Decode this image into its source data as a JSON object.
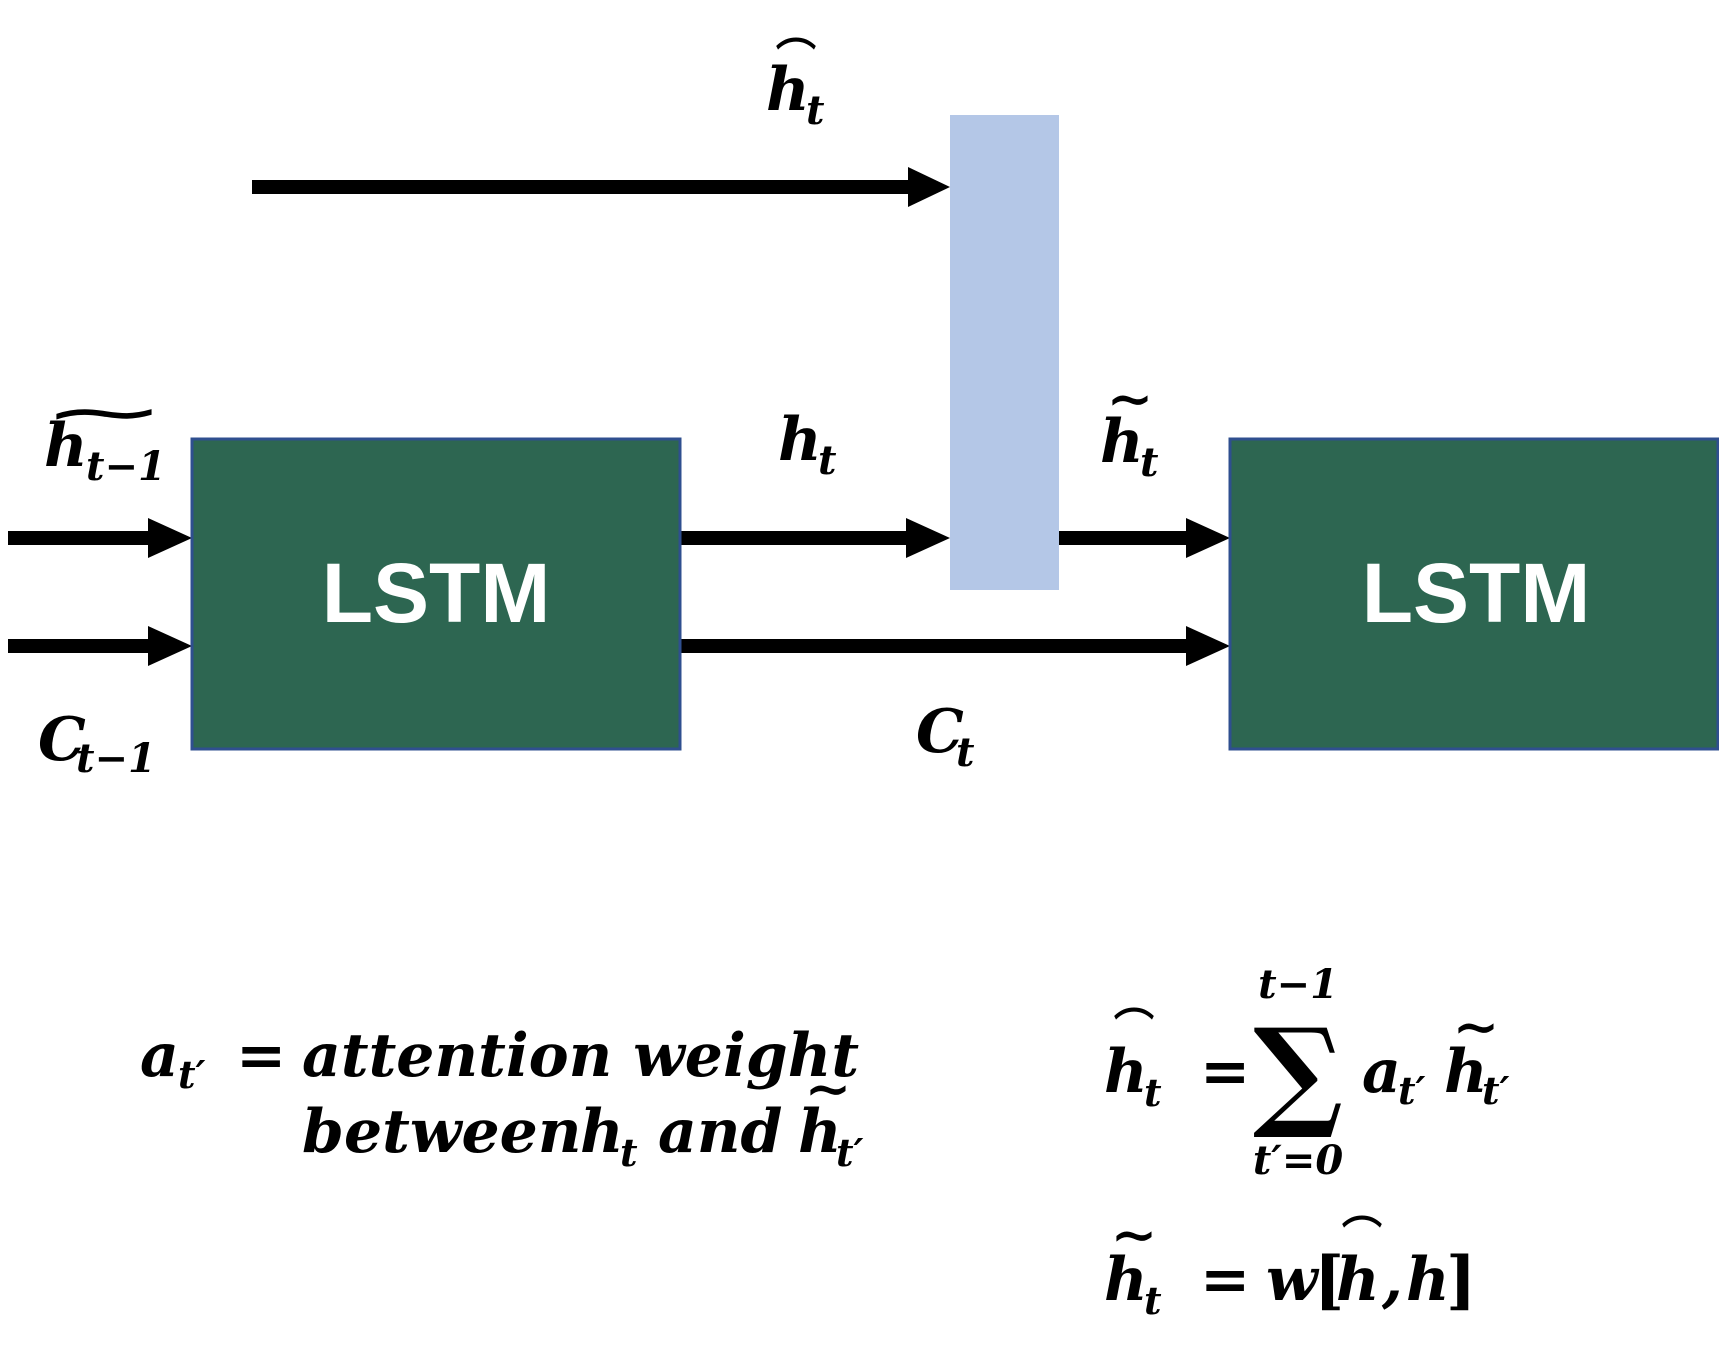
{
  "colors": {
    "lstm_fill": "#2d6651",
    "lstm_border": "#2f4f8f",
    "attention_fill": "#b4c7e7",
    "arrow": "#000000",
    "background": "#ffffff"
  },
  "boxes": {
    "lstm_left": "LSTM",
    "lstm_right": "LSTM"
  },
  "symbols": {
    "h": "h",
    "t": "t",
    "t_minus_1": "t−1",
    "C": "C",
    "hat": "⌒",
    "tilde": "∼"
  },
  "equations": {
    "attention_weight": {
      "lhs_a": "a",
      "lhs_sub": "t′",
      "equals": "=",
      "line1_text": "attention weight",
      "line2_text": "between",
      "line2_h": "h",
      "line2_h_sub": "t",
      "line2_and": "and",
      "line2_h2": "h",
      "line2_h2_sub": "t′"
    },
    "context": {
      "lhs_h": "h",
      "lhs_sub": "t",
      "equals": "=",
      "sigma": "∑",
      "upper_limit": "t−1",
      "lower_limit": "t′=0",
      "term_a": "a",
      "term_a_sub": "t′",
      "term_h": "h",
      "term_h_sub": "t′"
    },
    "combine": {
      "lhs_h": "h",
      "lhs_sub": "t",
      "equals": "=",
      "w": "w",
      "lbracket": "[",
      "hat_h": "h",
      "comma": ",",
      "h": "h",
      "rbracket": "]"
    }
  }
}
